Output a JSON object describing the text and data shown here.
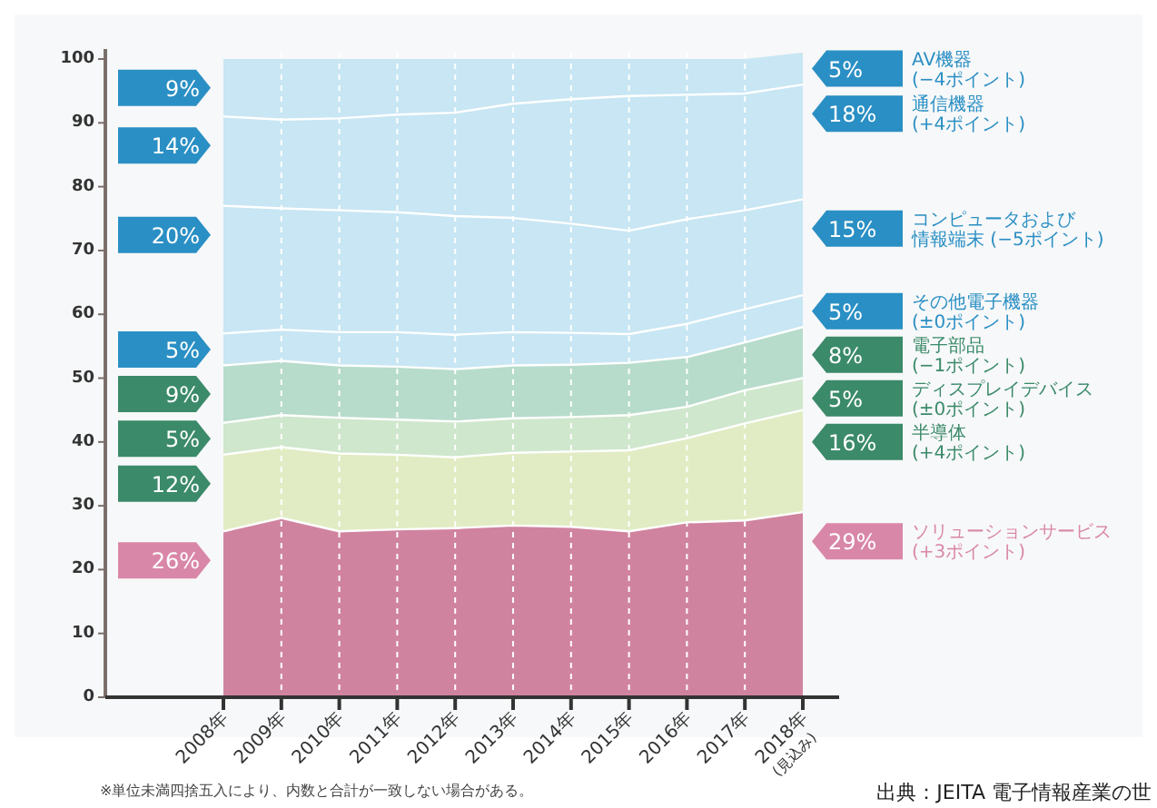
{
  "chart_data": {
    "type": "area",
    "stacked": true,
    "categories": [
      "2008年",
      "2009年",
      "2010年",
      "2011年",
      "2012年",
      "2013年",
      "2014年",
      "2015年",
      "2016年",
      "2017年",
      "2018年\n(見込み)"
    ],
    "series": [
      {
        "name": "ソリューションサービス\n(+3ポイント)",
        "color": "#d0839f",
        "values": [
          26,
          28.1,
          26.0,
          26.3,
          26.5,
          26.9,
          26.7,
          26.0,
          27.4,
          27.7,
          29
        ],
        "value_labels": [
          "26%",
          null,
          null,
          null,
          null,
          null,
          null,
          null,
          null,
          null,
          "29%"
        ]
      },
      {
        "name": "半導体\n(+4ポイント)",
        "color": "#e2ecc4",
        "values": [
          12,
          11.1,
          12.2,
          11.7,
          11.1,
          11.4,
          11.8,
          12.7,
          13.2,
          15.2,
          16
        ],
        "value_labels": [
          "12%",
          null,
          null,
          null,
          null,
          null,
          null,
          null,
          null,
          null,
          "16%"
        ]
      },
      {
        "name": "ディスプレイデバイス\n(±0ポイント)",
        "color": "#cfe7cc",
        "values": [
          5,
          5.0,
          5.6,
          5.5,
          5.6,
          5.4,
          5.4,
          5.5,
          4.9,
          5.2,
          5
        ],
        "value_labels": [
          "5%",
          null,
          null,
          null,
          null,
          null,
          null,
          null,
          null,
          null,
          "5%"
        ]
      },
      {
        "name": "電子部品\n(−1ポイント)",
        "color": "#b7dccb",
        "values": [
          9,
          8.5,
          8.2,
          8.3,
          8.2,
          8.3,
          8.2,
          8.2,
          7.8,
          7.5,
          8
        ],
        "value_labels": [
          "9%",
          null,
          null,
          null,
          null,
          null,
          null,
          null,
          null,
          null,
          "8%"
        ]
      },
      {
        "name": "その他電子機器\n(±0ポイント)",
        "color": "#c8e6f3",
        "values": [
          5,
          4.9,
          5.2,
          5.4,
          5.4,
          5.2,
          5.0,
          4.5,
          5.2,
          5.2,
          5
        ],
        "value_labels": [
          "5%",
          null,
          null,
          null,
          null,
          null,
          null,
          null,
          null,
          null,
          "5%"
        ]
      },
      {
        "name": "コンピュータおよび情報端末 (−5ポイント)",
        "color": "#c8e6f3",
        "values": [
          20,
          19.0,
          19.1,
          18.8,
          18.6,
          17.9,
          17.1,
          16.2,
          16.4,
          15.5,
          15
        ],
        "value_labels": [
          "20%",
          null,
          null,
          null,
          null,
          null,
          null,
          null,
          null,
          null,
          "15%"
        ]
      },
      {
        "name": "通信機器\n(+4ポイント)",
        "color": "#c8e6f3",
        "values": [
          14,
          13.9,
          14.4,
          15.3,
          16.2,
          17.9,
          19.5,
          21.1,
          19.5,
          18.3,
          18
        ],
        "value_labels": [
          "14%",
          null,
          null,
          null,
          null,
          null,
          null,
          null,
          null,
          null,
          "18%"
        ]
      },
      {
        "name": "AV機器\n(−4ポイント)",
        "color": "#c8e6f3",
        "values": [
          9,
          9.5,
          9.3,
          8.7,
          8.4,
          7.0,
          6.3,
          5.8,
          5.6,
          5.4,
          5
        ],
        "value_labels": [
          "9%",
          null,
          null,
          null,
          null,
          null,
          null,
          null,
          null,
          null,
          "5%"
        ]
      }
    ],
    "ylim": [
      0,
      101
    ],
    "yticks": [
      0,
      10,
      20,
      30,
      40,
      50,
      60,
      70,
      80,
      90,
      100
    ],
    "grid": "x",
    "legend": "right",
    "annotations": [
      "※単位未満四捨五入により、内数と合計が一致しない場合がある。",
      "出典：JEITA 電子情報産業の世"
    ]
  }
}
